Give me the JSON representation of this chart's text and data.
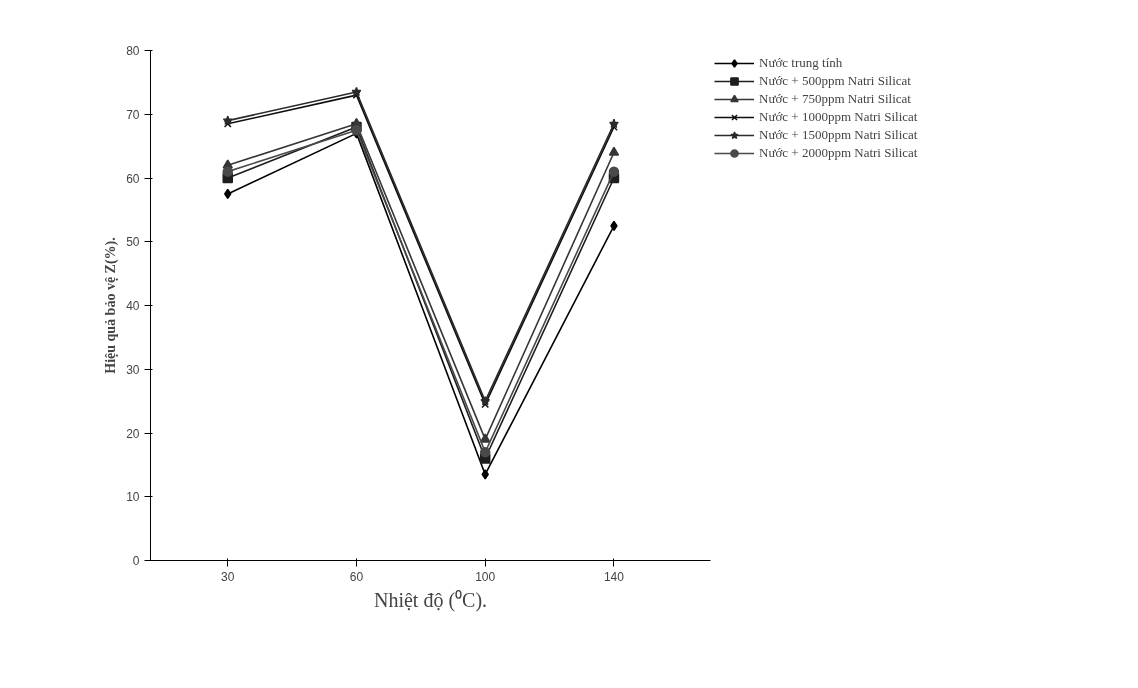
{
  "chart_data": {
    "type": "line",
    "xlabel": "Nhiệt độ (⁰C).",
    "ylabel": "Hiệu quả bảo vệ Z(%).",
    "categories": [
      "30",
      "60",
      "100",
      "140"
    ],
    "ylim": [
      0,
      80
    ],
    "yticks": [
      0,
      10,
      20,
      30,
      40,
      50,
      60,
      70,
      80
    ],
    "legend": "top right",
    "line_style": "solid",
    "series": [
      {
        "name": "Nước trung tính",
        "color": "#000000",
        "marker": "diamond",
        "values": [
          57.5,
          67,
          13.5,
          52.5
        ]
      },
      {
        "name": "Nước + 500ppm Natri Silicat",
        "color": "#1e1e1e",
        "marker": "square",
        "values": [
          60,
          68,
          16,
          60
        ]
      },
      {
        "name": "Nước + 750ppm Natri Silicat",
        "color": "#363636",
        "marker": "triangle",
        "values": [
          62,
          68.5,
          19,
          64
        ]
      },
      {
        "name": "Nước + 1000ppm Natri Silicat",
        "color": "#0f0f0f",
        "marker": "cross",
        "values": [
          68.5,
          73,
          24.5,
          68
        ]
      },
      {
        "name": "Nước + 1500ppm Natri Silicat",
        "color": "#2a2a2a",
        "marker": "star",
        "values": [
          69,
          73.5,
          25,
          68.5
        ]
      },
      {
        "name": "Nước + 2000ppm Natri Silicat",
        "color": "#4a4a4a",
        "marker": "circle",
        "values": [
          61,
          67.5,
          17,
          61
        ]
      }
    ]
  }
}
